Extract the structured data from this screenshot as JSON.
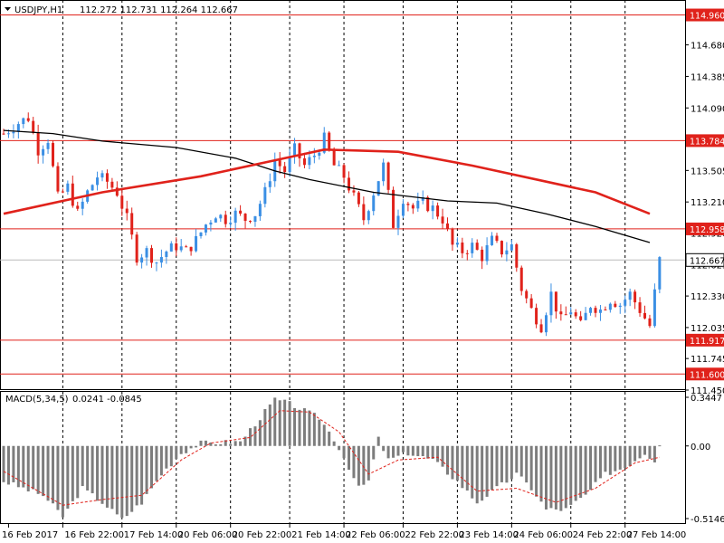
{
  "header": {
    "symbol_timeframe": "USDJPY,H1",
    "ohlc": "112.272 112.731 112.264 112.667"
  },
  "macd_header": {
    "label": "MACD(5,34,5)",
    "values": "0.0241 -0.0845"
  },
  "colors": {
    "bull": "#3b8fe4",
    "bear": "#e0221b",
    "ma_fast": "#e0221b",
    "ma_slow": "#000000",
    "level": "#e0221b",
    "macd_hist": "#7d7d7d",
    "macd_signal": "#e0221b",
    "grid": "#000000"
  },
  "chart_data": [
    {
      "type": "candlestick",
      "instrument": "USDJPY",
      "timeframe": "H1",
      "ylim": [
        111.45,
        115.1
      ],
      "price_ticks": [
        "114.680",
        "114.385",
        "114.090",
        "113.505",
        "113.210",
        "112.920",
        "112.625",
        "112.330",
        "112.035",
        "111.745",
        "111.450"
      ],
      "x_ticks": [
        "16 Feb 2017",
        "16 Feb 22:00",
        "17 Feb 14:00",
        "20 Feb 06:00",
        "20 Feb 22:00",
        "21 Feb 14:00",
        "22 Feb 06:00",
        "22 Feb 22:00",
        "23 Feb 14:00",
        "24 Feb 06:00",
        "24 Feb 22:00",
        "27 Feb 14:00"
      ],
      "horizontal_levels": [
        "114.960",
        "113.784",
        "112.958",
        "111.917",
        "111.600"
      ],
      "current_price": "112.667",
      "price_path": [
        [
          0,
          113.85
        ],
        [
          3,
          113.95
        ],
        [
          5,
          114.0
        ],
        [
          7,
          113.7
        ],
        [
          9,
          113.8
        ],
        [
          11,
          113.25
        ],
        [
          13,
          113.35
        ],
        [
          15,
          113.1
        ],
        [
          17,
          113.3
        ],
        [
          19,
          113.45
        ],
        [
          21,
          113.4
        ],
        [
          23,
          113.3
        ],
        [
          25,
          113.05
        ],
        [
          27,
          112.7
        ],
        [
          29,
          112.75
        ],
        [
          31,
          112.65
        ],
        [
          33,
          112.75
        ],
        [
          35,
          112.8
        ],
        [
          37,
          112.75
        ],
        [
          39,
          112.85
        ],
        [
          41,
          113.0
        ],
        [
          43,
          113.1
        ],
        [
          45,
          113.05
        ],
        [
          47,
          113.1
        ],
        [
          49,
          113.05
        ],
        [
          51,
          113.1
        ],
        [
          53,
          113.3
        ],
        [
          55,
          113.6
        ],
        [
          57,
          113.5
        ],
        [
          59,
          113.7
        ],
        [
          61,
          113.55
        ],
        [
          63,
          113.65
        ],
        [
          65,
          113.8
        ],
        [
          67,
          113.55
        ],
        [
          69,
          113.45
        ],
        [
          71,
          113.25
        ],
        [
          73,
          113.05
        ],
        [
          75,
          113.3
        ],
        [
          77,
          113.55
        ],
        [
          79,
          113.0
        ],
        [
          81,
          113.25
        ],
        [
          83,
          113.15
        ],
        [
          85,
          113.2
        ],
        [
          87,
          113.15
        ],
        [
          89,
          113.05
        ],
        [
          91,
          112.8
        ],
        [
          93,
          112.75
        ],
        [
          95,
          112.8
        ],
        [
          97,
          112.7
        ],
        [
          99,
          112.85
        ],
        [
          101,
          112.75
        ],
        [
          103,
          112.8
        ],
        [
          105,
          112.4
        ],
        [
          107,
          112.2
        ],
        [
          109,
          112.05
        ],
        [
          111,
          112.35
        ],
        [
          113,
          112.1
        ],
        [
          115,
          112.2
        ],
        [
          117,
          112.05
        ],
        [
          119,
          112.25
        ],
        [
          121,
          112.2
        ],
        [
          123,
          112.3
        ],
        [
          125,
          112.25
        ],
        [
          127,
          112.35
        ],
        [
          129,
          112.2
        ],
        [
          131,
          112.05
        ],
        [
          133,
          112.667
        ]
      ],
      "candles_total": 134,
      "ma_fast_path": [
        [
          0,
          113.1
        ],
        [
          20,
          113.3
        ],
        [
          40,
          113.45
        ],
        [
          55,
          113.6
        ],
        [
          65,
          113.7
        ],
        [
          80,
          113.68
        ],
        [
          95,
          113.55
        ],
        [
          110,
          113.4
        ],
        [
          120,
          113.3
        ],
        [
          131,
          113.1
        ]
      ],
      "ma_slow_path": [
        [
          0,
          113.88
        ],
        [
          10,
          113.85
        ],
        [
          20,
          113.78
        ],
        [
          35,
          113.72
        ],
        [
          47,
          113.62
        ],
        [
          55,
          113.5
        ],
        [
          62,
          113.42
        ],
        [
          75,
          113.3
        ],
        [
          90,
          113.22
        ],
        [
          100,
          113.2
        ],
        [
          110,
          113.1
        ],
        [
          120,
          112.98
        ],
        [
          131,
          112.83
        ]
      ]
    },
    {
      "type": "bar",
      "indicator": "MACD(5,34,5)",
      "y_ticks": [
        "0.3447",
        "0.00",
        "-0.5146"
      ],
      "ylim": [
        -0.5146,
        0.3447
      ],
      "histogram_path": [
        [
          0,
          -0.25
        ],
        [
          8,
          -0.35
        ],
        [
          12,
          -0.5
        ],
        [
          16,
          -0.3
        ],
        [
          20,
          -0.4
        ],
        [
          24,
          -0.52
        ],
        [
          28,
          -0.4
        ],
        [
          32,
          -0.2
        ],
        [
          36,
          -0.05
        ],
        [
          40,
          0.02
        ],
        [
          48,
          0.03
        ],
        [
          52,
          0.2
        ],
        [
          55,
          0.33
        ],
        [
          58,
          0.3
        ],
        [
          61,
          0.25
        ],
        [
          64,
          0.2
        ],
        [
          67,
          0.05
        ],
        [
          70,
          -0.15
        ],
        [
          72,
          -0.3
        ],
        [
          74,
          -0.25
        ],
        [
          76,
          0.05
        ],
        [
          78,
          -0.1
        ],
        [
          82,
          -0.05
        ],
        [
          87,
          -0.1
        ],
        [
          92,
          -0.25
        ],
        [
          96,
          -0.4
        ],
        [
          100,
          -0.3
        ],
        [
          104,
          -0.2
        ],
        [
          107,
          -0.3
        ],
        [
          110,
          -0.45
        ],
        [
          114,
          -0.45
        ],
        [
          118,
          -0.35
        ],
        [
          122,
          -0.2
        ],
        [
          126,
          -0.15
        ],
        [
          130,
          -0.05
        ],
        [
          132,
          -0.1
        ],
        [
          133,
          0.02
        ]
      ],
      "signal_path": [
        [
          0,
          -0.18
        ],
        [
          12,
          -0.42
        ],
        [
          20,
          -0.38
        ],
        [
          28,
          -0.35
        ],
        [
          36,
          -0.1
        ],
        [
          42,
          0.02
        ],
        [
          50,
          0.06
        ],
        [
          56,
          0.25
        ],
        [
          62,
          0.24
        ],
        [
          68,
          0.1
        ],
        [
          74,
          -0.2
        ],
        [
          80,
          -0.1
        ],
        [
          88,
          -0.08
        ],
        [
          96,
          -0.32
        ],
        [
          104,
          -0.3
        ],
        [
          112,
          -0.4
        ],
        [
          120,
          -0.3
        ],
        [
          128,
          -0.12
        ],
        [
          133,
          -0.08
        ]
      ]
    }
  ]
}
